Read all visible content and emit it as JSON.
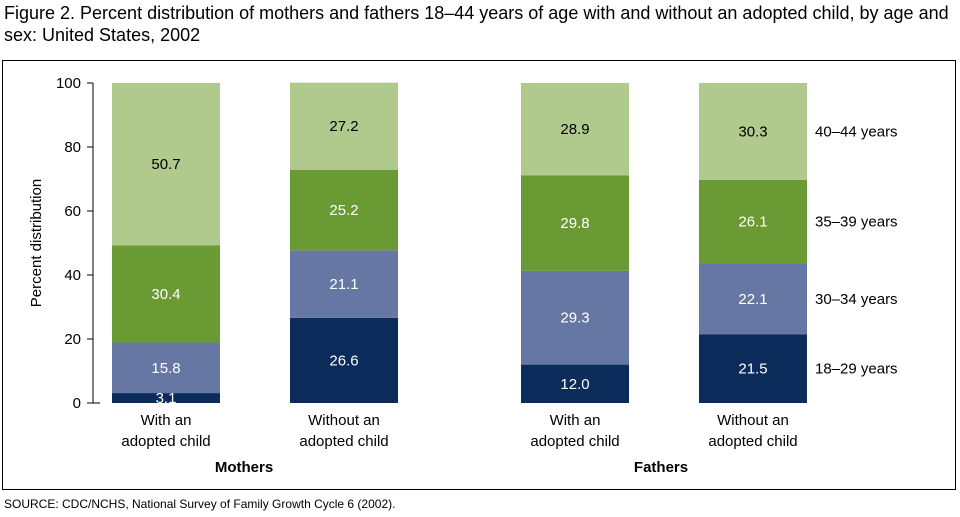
{
  "title": "Figure 2. Percent distribution of mothers and fathers 18–44 years of age with and without an adopted child, by age and sex: United States, 2002",
  "source": "SOURCE: CDC/NCHS, National Survey of Family Growth Cycle 6 (2002).",
  "chart_data": {
    "type": "bar",
    "stacked": true,
    "ylabel": "Percent distribution",
    "ylim": [
      0,
      100
    ],
    "yticks": [
      "0",
      "20",
      "40",
      "60",
      "80",
      "100"
    ],
    "grid": false,
    "legend": "right",
    "groups": [
      "Mothers",
      "Fathers"
    ],
    "categories": [
      "With an adopted child",
      "Without an adopted child",
      "With an adopted child",
      "Without an adopted child"
    ],
    "category_lines": [
      [
        "With an",
        "adopted child"
      ],
      [
        "Without an",
        "adopted child"
      ],
      [
        "With an",
        "adopted child"
      ],
      [
        "Without an",
        "adopted child"
      ]
    ],
    "series": [
      {
        "name": "18–29 years",
        "color": "#0b2b5a",
        "values": [
          3.1,
          26.6,
          12.0,
          21.5
        ],
        "labels": [
          "3.1",
          "26.6",
          "12.0",
          "21.5"
        ]
      },
      {
        "name": "30–34 years",
        "color": "#6677a3",
        "values": [
          15.8,
          21.1,
          29.3,
          22.1
        ],
        "labels": [
          "15.8",
          "21.1",
          "29.3",
          "22.1"
        ]
      },
      {
        "name": "35–39 years",
        "color": "#6a9a33",
        "values": [
          30.4,
          25.2,
          29.8,
          26.1
        ],
        "labels": [
          "30.4",
          "25.2",
          "29.8",
          "26.1"
        ]
      },
      {
        "name": "40–44 years",
        "color": "#b0c98c",
        "values": [
          50.7,
          27.2,
          28.9,
          30.3
        ],
        "labels": [
          "50.7",
          "27.2",
          "28.9",
          "30.3"
        ]
      }
    ]
  }
}
